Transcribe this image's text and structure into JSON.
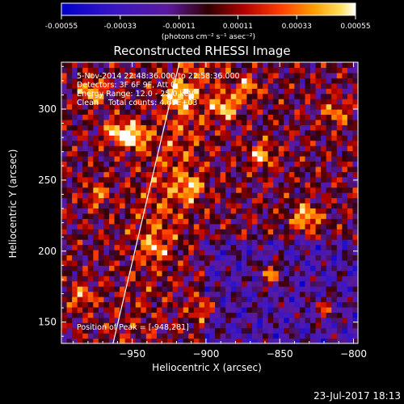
{
  "chart_data": {
    "type": "heatmap",
    "title": "Reconstructed RHESSI Image",
    "xlabel": "Heliocentric X (arcsec)",
    "ylabel": "Heliocentric Y (arcsec)",
    "xlim": [
      -998,
      -797
    ],
    "ylim": [
      135,
      333
    ],
    "xticks": [
      -950,
      -900,
      -850,
      -800
    ],
    "yticks": [
      150,
      200,
      250,
      300
    ],
    "colorbar": {
      "range": [
        -0.00055,
        0.00055
      ],
      "ticks": [
        "-0.00055",
        "-0.00033",
        "-0.00011",
        "0.00011",
        "0.00033",
        "0.00055"
      ],
      "unit": "(photons cm⁻² s⁻¹ asec⁻²)"
    },
    "annotations": [
      "5-Nov-2014 22:48:36.000 to 22:58:36.000",
      "Detectors: 3F 6F 9F, Att 0",
      "Energy Range: 12.0 - 25.0 keV",
      "Clean    Total counts: 4.69E+03"
    ],
    "peak_label": "Position of Peak = [-948,281]",
    "peak": [
      -948,
      281
    ],
    "bright_sources": [
      {
        "x": -977,
        "y": 313,
        "v": 0.00046
      },
      {
        "x": -960,
        "y": 284,
        "v": 0.0005
      },
      {
        "x": -948,
        "y": 281,
        "v": 0.00055
      },
      {
        "x": -918,
        "y": 310,
        "v": 0.00044
      },
      {
        "x": -887,
        "y": 302,
        "v": 0.00048
      },
      {
        "x": -872,
        "y": 315,
        "v": 0.00038
      },
      {
        "x": -862,
        "y": 268,
        "v": 0.00042
      },
      {
        "x": -832,
        "y": 224,
        "v": 0.00052
      },
      {
        "x": -856,
        "y": 184,
        "v": 0.00047
      },
      {
        "x": -935,
        "y": 202,
        "v": 0.00036
      },
      {
        "x": -974,
        "y": 240,
        "v": 0.0003
      },
      {
        "x": -911,
        "y": 245,
        "v": 0.0004
      },
      {
        "x": -812,
        "y": 298,
        "v": 0.00034
      },
      {
        "x": -820,
        "y": 160,
        "v": 0.00032
      },
      {
        "x": -984,
        "y": 168,
        "v": 0.00035
      },
      {
        "x": -901,
        "y": 160,
        "v": 0.00036
      }
    ],
    "limb_line": [
      [
        -963,
        135
      ],
      [
        -918,
        333
      ]
    ],
    "grid": false
  },
  "timestamp": "23-Jul-2017 18:13"
}
